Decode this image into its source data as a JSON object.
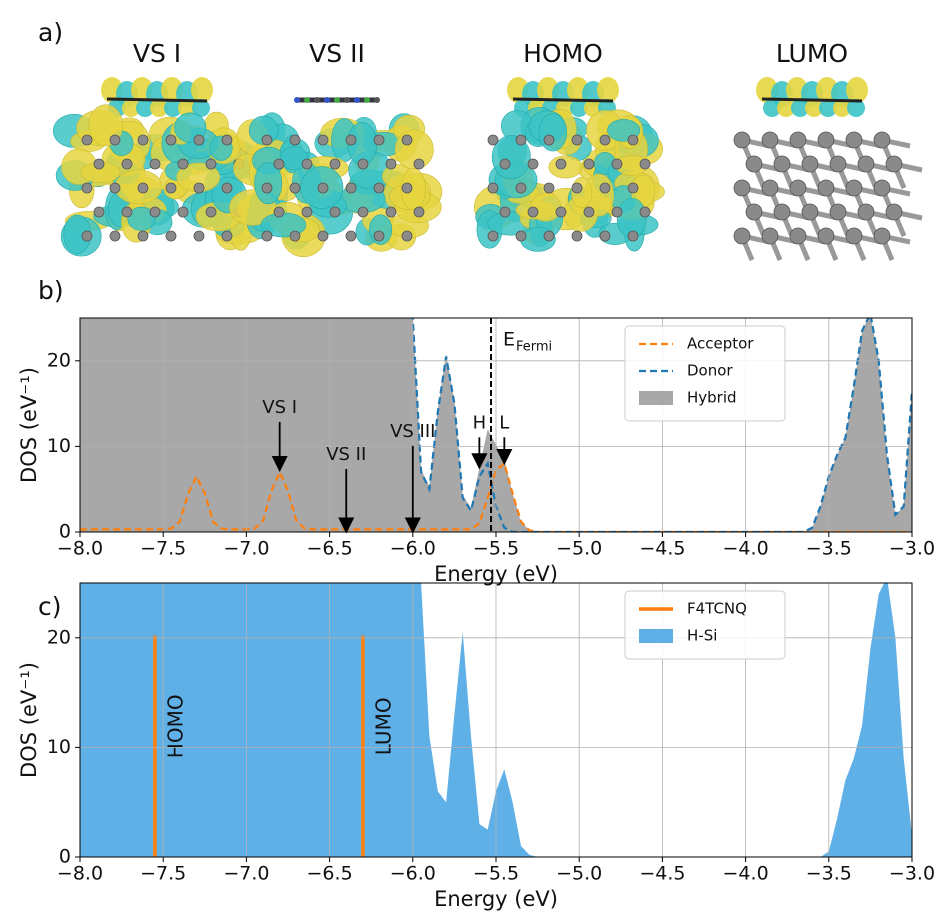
{
  "figure": {
    "panel_labels": [
      "a)",
      "b)",
      "c)"
    ],
    "structure_titles": [
      "VS I",
      "VS II",
      "HOMO",
      "LUMO"
    ]
  },
  "chart_data": [
    {
      "type": "area",
      "xlabel": "Energy (eV)",
      "ylabel": "DOS (eV⁻¹)",
      "xlim": [
        -8,
        -3
      ],
      "ylim": [
        0,
        25
      ],
      "xticks": [
        {
          "value": -8,
          "label": "−8.0"
        },
        {
          "value": -7.5,
          "label": "−7.5"
        },
        {
          "value": -7,
          "label": "−7.0"
        },
        {
          "value": -6.5,
          "label": "−6.5"
        },
        {
          "value": -6,
          "label": "−6.0"
        },
        {
          "value": -5.5,
          "label": "−5.5"
        },
        {
          "value": -5,
          "label": "−5.0"
        },
        {
          "value": -4.5,
          "label": "−4.5"
        },
        {
          "value": -4,
          "label": "−4.0"
        },
        {
          "value": -3.5,
          "label": "−3.5"
        },
        {
          "value": -3,
          "label": "−3.0"
        }
      ],
      "yticks": [
        0,
        10,
        20
      ],
      "grid": true,
      "legend": "upper right",
      "x": [
        -8,
        -7.95,
        -7.9,
        -7.85,
        -7.8,
        -7.75,
        -7.7,
        -7.65,
        -7.6,
        -7.55,
        -7.5,
        -7.45,
        -7.4,
        -7.35,
        -7.3,
        -7.25,
        -7.2,
        -7.15,
        -7.1,
        -7.05,
        -7,
        -6.95,
        -6.9,
        -6.85,
        -6.8,
        -6.75,
        -6.7,
        -6.65,
        -6.6,
        -6.55,
        -6.5,
        -6.45,
        -6.4,
        -6.35,
        -6.3,
        -6.25,
        -6.2,
        -6.15,
        -6.1,
        -6.05,
        -6,
        -5.95,
        -5.9,
        -5.85,
        -5.8,
        -5.75,
        -5.7,
        -5.65,
        -5.6,
        -5.55,
        -5.5,
        -5.45,
        -5.4,
        -5.35,
        -5.3,
        -5.25,
        -5.2,
        -5.15,
        -5.1,
        -5.05,
        -5,
        -4.95,
        -4.9,
        -4.85,
        -4.8,
        -4.75,
        -4.7,
        -4.65,
        -4.6,
        -4.55,
        -4.5,
        -4.45,
        -4.4,
        -4.35,
        -4.3,
        -4.25,
        -4.2,
        -4.15,
        -4.1,
        -4.05,
        -4,
        -3.95,
        -3.9,
        -3.85,
        -3.8,
        -3.75,
        -3.7,
        -3.65,
        -3.6,
        -3.55,
        -3.5,
        -3.45,
        -3.4,
        -3.35,
        -3.3,
        -3.25,
        -3.2,
        -3.15,
        -3.1,
        -3.05,
        -3
      ],
      "series": [
        {
          "name": "Acceptor",
          "color": "#ff7f0e",
          "style": "dashed",
          "values": [
            0.3,
            0.3,
            0.3,
            0.3,
            0.3,
            0.3,
            0.3,
            0.3,
            0.3,
            0.3,
            0.3,
            0.4,
            1.2,
            4.5,
            6.5,
            4.5,
            1.2,
            0.4,
            0.3,
            0.3,
            0.3,
            0.4,
            1.3,
            4.8,
            7.0,
            4.8,
            1.3,
            0.4,
            0.3,
            0.3,
            0.3,
            0.3,
            0.3,
            0.3,
            0.3,
            0.3,
            0.3,
            0.3,
            0.3,
            0.3,
            0.3,
            0.3,
            0.3,
            0.3,
            0.3,
            0.3,
            0.3,
            0.3,
            1.0,
            4.0,
            7.2,
            8.0,
            4.5,
            1.2,
            0.2,
            0,
            0,
            0,
            0,
            0,
            0,
            0,
            0,
            0,
            0,
            0,
            0,
            0,
            0,
            0,
            0,
            0,
            0,
            0,
            0,
            0,
            0,
            0,
            0,
            0,
            0,
            0,
            0,
            0,
            0,
            0,
            0,
            0,
            0,
            0,
            0,
            0,
            0,
            0,
            0,
            0,
            0,
            0,
            0,
            0,
            0
          ]
        },
        {
          "name": "Donor",
          "color": "#1f77b4",
          "style": "dashed",
          "values": [
            30,
            30,
            30,
            30,
            30,
            30,
            30,
            30,
            30,
            30,
            30,
            30,
            30,
            30,
            30,
            30,
            30,
            30,
            30,
            30,
            30,
            30,
            30,
            30,
            30,
            30,
            30,
            30,
            30,
            30,
            30,
            30,
            30,
            30,
            30,
            30,
            30,
            30,
            30,
            30,
            25,
            7,
            5,
            14,
            20.5,
            15,
            4,
            2.5,
            6.5,
            8,
            3,
            0.5,
            0,
            0,
            0,
            0,
            0,
            0,
            0,
            0,
            0,
            0,
            0,
            0,
            0,
            0,
            0,
            0,
            0,
            0,
            0,
            0,
            0,
            0,
            0,
            0,
            0,
            0,
            0,
            0,
            0,
            0,
            0,
            0,
            0,
            0,
            0,
            0,
            0.5,
            3,
            6.5,
            9,
            11,
            17,
            23.5,
            25.5,
            20,
            9,
            2,
            3,
            16.5
          ]
        },
        {
          "name": "Hybrid",
          "color": "#7f7f7f",
          "style": "fill",
          "values": [
            30,
            30,
            30,
            30,
            30,
            30,
            30,
            30,
            30,
            30,
            30,
            30,
            30,
            30,
            30,
            30,
            30,
            30,
            30,
            30,
            30,
            30,
            30,
            30,
            30,
            30,
            30,
            30,
            30,
            30,
            30,
            30,
            30,
            30,
            30,
            30,
            30,
            30,
            30,
            30,
            25.3,
            7.3,
            5.3,
            14.3,
            20.8,
            15.3,
            4.3,
            2.8,
            7.5,
            12,
            10.2,
            8.5,
            4.5,
            1.2,
            0.2,
            0,
            0,
            0,
            0,
            0,
            0,
            0,
            0,
            0,
            0,
            0,
            0,
            0,
            0,
            0,
            0,
            0,
            0,
            0,
            0,
            0,
            0,
            0,
            0,
            0,
            0,
            0,
            0,
            0,
            0,
            0,
            0,
            0,
            0.5,
            3,
            6.5,
            9,
            11,
            17,
            23.5,
            25.5,
            20,
            9,
            2,
            3,
            16.5
          ]
        }
      ],
      "annotations": [
        {
          "text": "VS I",
          "x": -6.8,
          "y": 7.2,
          "text_y": 14.5
        },
        {
          "text": "VS II",
          "x": -6.4,
          "y": 0,
          "text_y": 9
        },
        {
          "text": "VS III",
          "x": -6,
          "y": 0,
          "text_y": 11.7
        },
        {
          "text": "H",
          "x": -5.6,
          "y": 7.5,
          "text_y": 12.7
        },
        {
          "text": "L",
          "x": -5.45,
          "y": 8,
          "text_y": 12.7
        }
      ],
      "fermi_level": {
        "x": -5.53,
        "label": "E",
        "subscript": "Fermi"
      }
    },
    {
      "type": "area",
      "xlabel": "Energy (eV)",
      "ylabel": "DOS (eV⁻¹)",
      "xlim": [
        -8,
        -3
      ],
      "ylim": [
        0,
        25
      ],
      "xticks": [
        {
          "value": -8,
          "label": "−8.0"
        },
        {
          "value": -7.5,
          "label": "−7.5"
        },
        {
          "value": -7,
          "label": "−7.0"
        },
        {
          "value": -6.5,
          "label": "−6.5"
        },
        {
          "value": -6,
          "label": "−6.0"
        },
        {
          "value": -5.5,
          "label": "−5.5"
        },
        {
          "value": -5,
          "label": "−5.0"
        },
        {
          "value": -4.5,
          "label": "−4.5"
        },
        {
          "value": -4,
          "label": "−4.0"
        },
        {
          "value": -3.5,
          "label": "−3.5"
        },
        {
          "value": -3,
          "label": "−3.0"
        }
      ],
      "yticks": [
        0,
        10,
        20
      ],
      "grid": true,
      "legend": "upper right",
      "x": [
        -8,
        -7.95,
        -7.9,
        -7.85,
        -7.8,
        -7.75,
        -7.7,
        -7.65,
        -7.6,
        -7.55,
        -7.5,
        -7.45,
        -7.4,
        -7.35,
        -7.3,
        -7.25,
        -7.2,
        -7.15,
        -7.1,
        -7.05,
        -7,
        -6.95,
        -6.9,
        -6.85,
        -6.8,
        -6.75,
        -6.7,
        -6.65,
        -6.6,
        -6.55,
        -6.5,
        -6.45,
        -6.4,
        -6.35,
        -6.3,
        -6.25,
        -6.2,
        -6.15,
        -6.1,
        -6.05,
        -6,
        -5.95,
        -5.9,
        -5.85,
        -5.8,
        -5.75,
        -5.7,
        -5.65,
        -5.6,
        -5.55,
        -5.5,
        -5.45,
        -5.4,
        -5.35,
        -5.3,
        -5.25,
        -5.2,
        -5.15,
        -5.1,
        -5.05,
        -5,
        -4.95,
        -4.9,
        -4.85,
        -4.8,
        -4.75,
        -4.7,
        -4.65,
        -4.6,
        -4.55,
        -4.5,
        -4.45,
        -4.4,
        -4.35,
        -4.3,
        -4.25,
        -4.2,
        -4.15,
        -4.1,
        -4.05,
        -4,
        -3.95,
        -3.9,
        -3.85,
        -3.8,
        -3.75,
        -3.7,
        -3.65,
        -3.6,
        -3.55,
        -3.5,
        -3.45,
        -3.4,
        -3.35,
        -3.3,
        -3.25,
        -3.2,
        -3.15,
        -3.1,
        -3.05,
        -3
      ],
      "series": [
        {
          "name": "F4TCNQ",
          "color": "#ff7f0e",
          "style": "vline",
          "x": [
            -7.55,
            -6.3
          ],
          "values": [
            20.2,
            20.2
          ],
          "labels": [
            "HOMO",
            "LUMO"
          ]
        },
        {
          "name": "H-Si",
          "color": "#2b95e0",
          "style": "fill",
          "values": [
            30,
            30,
            30,
            30,
            30,
            30,
            30,
            30,
            30,
            30,
            30,
            30,
            30,
            30,
            30,
            30,
            30,
            30,
            30,
            30,
            30,
            30,
            30,
            30,
            30,
            30,
            30,
            30,
            30,
            30,
            30,
            30,
            30,
            30,
            30,
            30,
            30,
            30,
            30,
            30,
            30,
            25,
            11,
            6,
            5,
            13,
            20.5,
            11,
            3,
            2.5,
            6,
            8,
            5,
            1,
            0.2,
            0,
            0,
            0,
            0,
            0,
            0,
            0,
            0,
            0,
            0,
            0,
            0,
            0,
            0,
            0,
            0,
            0,
            0,
            0,
            0,
            0,
            0,
            0,
            0,
            0,
            0,
            0,
            0,
            0,
            0,
            0,
            0,
            0,
            0,
            0,
            0.5,
            3.5,
            7,
            9,
            12,
            19,
            24,
            25.5,
            20,
            9,
            2
          ]
        }
      ]
    }
  ]
}
